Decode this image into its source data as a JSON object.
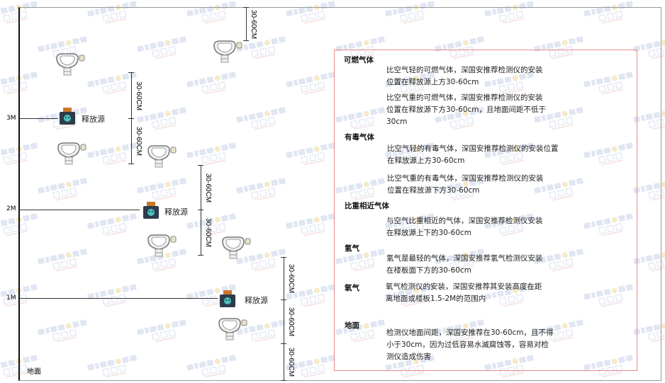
{
  "watermark": {
    "logo": "SINGOAN",
    "sub": "深国安"
  },
  "levels": {
    "l3": "3M",
    "l2": "2M",
    "l1": "1M",
    "ground": "地面"
  },
  "source_label": "释放源",
  "dim_label": "30-60CM",
  "panel": {
    "s1": {
      "title": "可燃气体",
      "p1": [
        "比空气轻的可燃气体，深国安推荐检测仪的安装",
        "位置在释放源上方30-60cm"
      ],
      "p2": [
        "比空气重的可燃气体，深国安推荐检测仪的安装",
        "位置在释放源下方30-60cm，且地面间距不低于",
        "30cm"
      ]
    },
    "s2": {
      "title": "有毒气体",
      "p1": [
        "比空气轻的有毒气体，深国安推荐检测仪的安装位置",
        "在释放源上方30-60cm"
      ],
      "p2": [
        "比空气重的有毒气体，深国安推荐检测仪的安装",
        "位置在释放源下方30-60cm"
      ]
    },
    "s3": {
      "title": "比重相近气体",
      "p1": [
        "与空气比重相近的气体，深国安推荐检测仪安装",
        "在释放源上下的30-60cm"
      ]
    },
    "s4": {
      "title": "氢气",
      "p1": [
        "氢气是最轻的气体，深国安推荐氢气检测仪安装",
        "在楼板面下方的30-60cm"
      ]
    },
    "s5": {
      "title": "氧气",
      "p1": [
        "氧气检测仪的安装，深国安推荐其安装高度在距",
        "离地面或楼板1.5-2M的范围内"
      ]
    },
    "s6": {
      "title": "地面",
      "p1": [
        "检测仪地面间距，深国安推荐在30-60cm，且不得",
        "小于30cm，因为过低容易水滅腐蚀等，容易对检",
        "测仪造成伤害"
      ]
    }
  }
}
